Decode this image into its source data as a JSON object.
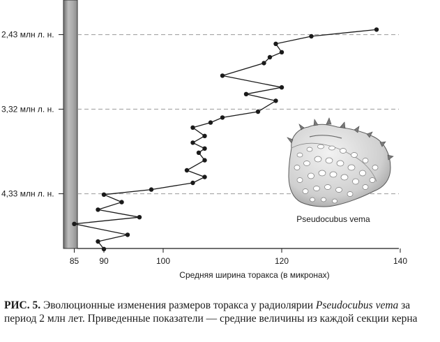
{
  "chart_data": {
    "type": "line",
    "xlabel": "Средняя ширина торакса (в микронах)",
    "x_ticks": [
      85,
      90,
      100,
      120,
      140
    ],
    "xlim": [
      82,
      142
    ],
    "y_reference_lines": [
      {
        "label": "2,43 млн л. н.",
        "value": 2.43
      },
      {
        "label": "3,32 млн л. н.",
        "value": 3.32
      },
      {
        "label": "4,33 млн л. н.",
        "value": 4.33
      }
    ],
    "ylim": [
      2.05,
      5.05
    ],
    "grid": false,
    "series": [
      {
        "points": [
          {
            "x": 136,
            "y": 2.37
          },
          {
            "x": 125,
            "y": 2.45
          },
          {
            "x": 119,
            "y": 2.54
          },
          {
            "x": 120,
            "y": 2.64
          },
          {
            "x": 118,
            "y": 2.7
          },
          {
            "x": 117,
            "y": 2.77
          },
          {
            "x": 110,
            "y": 2.92
          },
          {
            "x": 120,
            "y": 3.06
          },
          {
            "x": 114,
            "y": 3.14
          },
          {
            "x": 119,
            "y": 3.22
          },
          {
            "x": 116,
            "y": 3.35
          },
          {
            "x": 110,
            "y": 3.42
          },
          {
            "x": 108,
            "y": 3.48
          },
          {
            "x": 105,
            "y": 3.54
          },
          {
            "x": 107,
            "y": 3.64
          },
          {
            "x": 105,
            "y": 3.72
          },
          {
            "x": 107,
            "y": 3.79
          },
          {
            "x": 106,
            "y": 3.84
          },
          {
            "x": 107,
            "y": 3.93
          },
          {
            "x": 104,
            "y": 4.05
          },
          {
            "x": 107,
            "y": 4.13
          },
          {
            "x": 105,
            "y": 4.2
          },
          {
            "x": 98,
            "y": 4.28
          },
          {
            "x": 90,
            "y": 4.34
          },
          {
            "x": 93,
            "y": 4.43
          },
          {
            "x": 89,
            "y": 4.52
          },
          {
            "x": 96,
            "y": 4.61
          },
          {
            "x": 85,
            "y": 4.69
          },
          {
            "x": 94,
            "y": 4.82
          },
          {
            "x": 89,
            "y": 4.9
          },
          {
            "x": 90,
            "y": 4.99
          }
        ]
      }
    ]
  },
  "specimen_label": "Pseudocubus vema",
  "caption": {
    "label": "РИС. 5.",
    "text_before": " Эволюционные изменения размеров торакса у радиолярии ",
    "species": "Pseudocubus vema",
    "text_after": " за период 2 млн лет. Приведенные показатели — средние величины из каждой секции керна"
  }
}
